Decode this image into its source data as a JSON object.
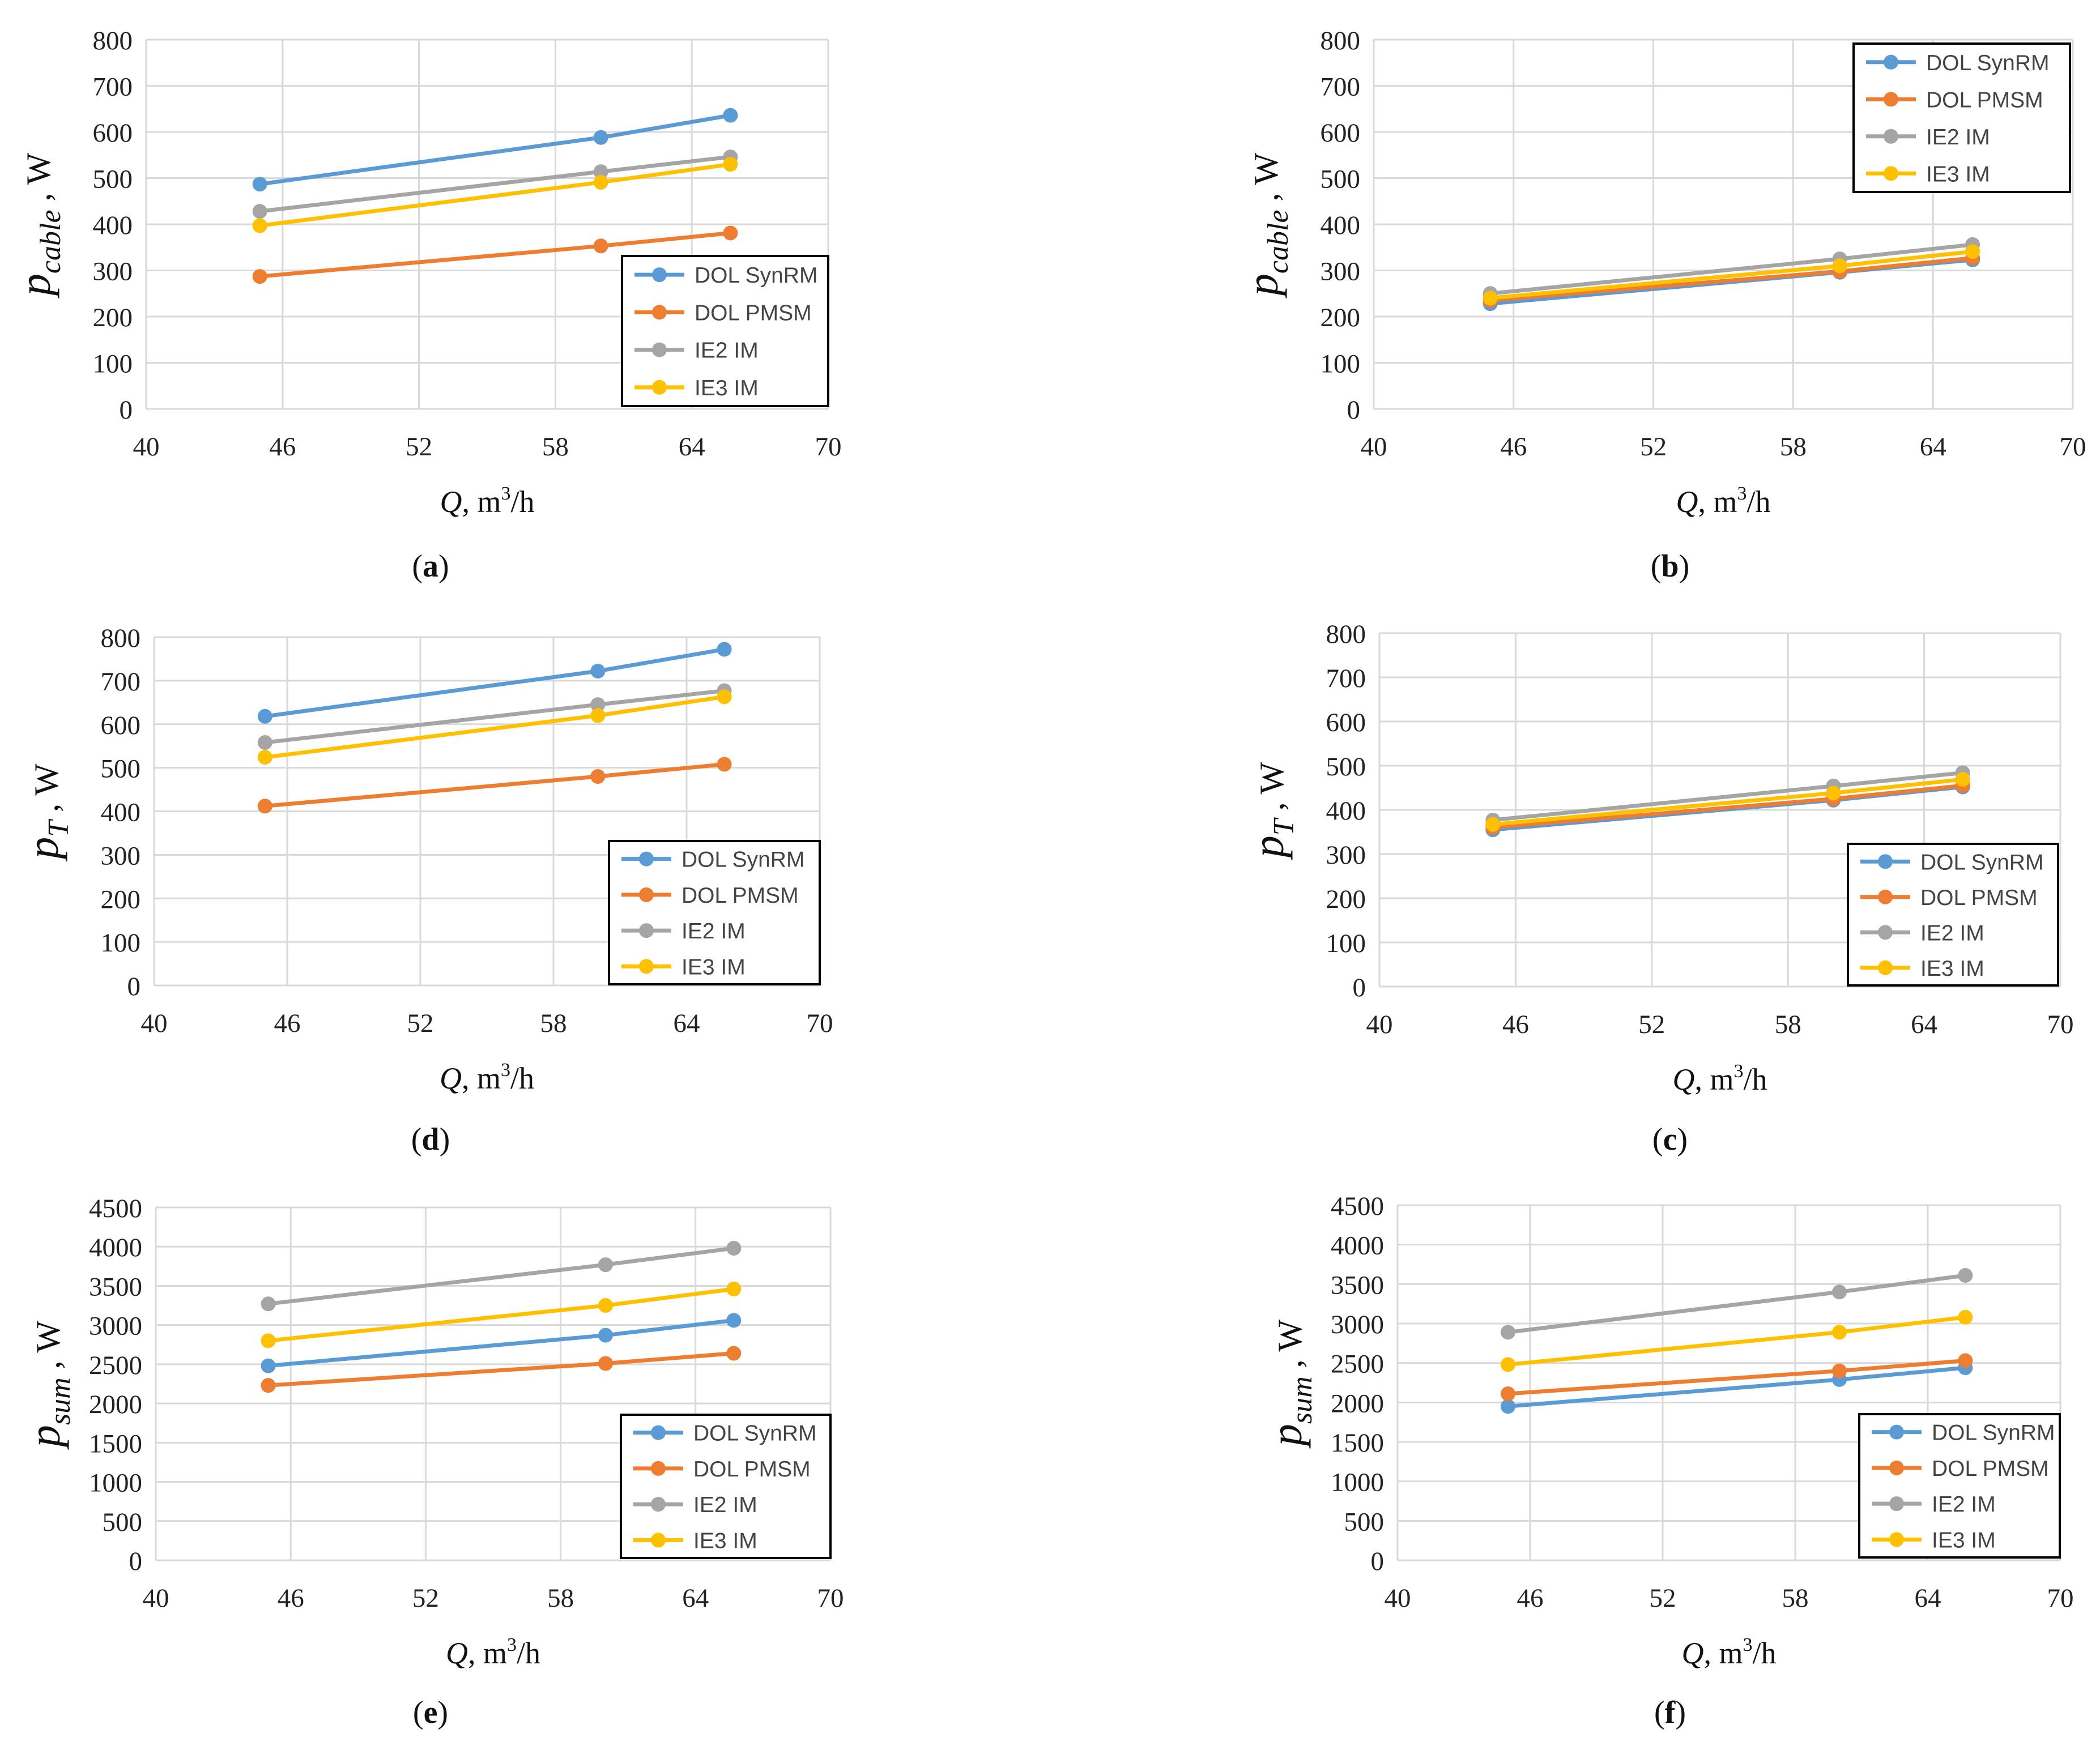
{
  "series_colors": {
    "DOL SynRM": "#5B9BD5",
    "DOL PMSM": "#ED7D31",
    "IE2 IM": "#A5A5A5",
    "IE3 IM": "#FFC000"
  },
  "chart_data": [
    {
      "id": "a",
      "type": "line",
      "panel_label": "a",
      "ylabel": {
        "main": "p",
        "sub": "cable",
        "unit": ", W"
      },
      "xlabel": {
        "main": "Q",
        "unit": ", m",
        "sup": "3",
        "tail": "/h"
      },
      "xlim": [
        40,
        70
      ],
      "xticks": [
        40,
        46,
        52,
        58,
        64,
        70
      ],
      "ylim": [
        0,
        800
      ],
      "yticks": [
        0,
        100,
        200,
        300,
        400,
        500,
        600,
        700,
        800
      ],
      "legend": "bottom-right",
      "series": [
        {
          "name": "DOL SynRM",
          "x": [
            45,
            60,
            65.7
          ],
          "y": [
            487,
            588,
            636
          ]
        },
        {
          "name": "DOL PMSM",
          "x": [
            45,
            60,
            65.7
          ],
          "y": [
            287,
            353,
            381
          ]
        },
        {
          "name": "IE2 IM",
          "x": [
            45,
            60,
            65.7
          ],
          "y": [
            428,
            514,
            546
          ]
        },
        {
          "name": "IE3 IM",
          "x": [
            45,
            60,
            65.7
          ],
          "y": [
            397,
            491,
            530
          ]
        }
      ]
    },
    {
      "id": "b",
      "type": "line",
      "panel_label": "b",
      "ylabel": {
        "main": "p",
        "sub": "cable",
        "unit": ", W"
      },
      "xlabel": {
        "main": "Q",
        "unit": ", m",
        "sup": "3",
        "tail": "/h"
      },
      "xlim": [
        40,
        70
      ],
      "xticks": [
        40,
        46,
        52,
        58,
        64,
        70
      ],
      "ylim": [
        0,
        800
      ],
      "yticks": [
        0,
        100,
        200,
        300,
        400,
        500,
        600,
        700,
        800
      ],
      "legend": "top-right",
      "series": [
        {
          "name": "DOL SynRM",
          "x": [
            45,
            60,
            65.7
          ],
          "y": [
            228,
            296,
            323
          ]
        },
        {
          "name": "DOL PMSM",
          "x": [
            45,
            60,
            65.7
          ],
          "y": [
            235,
            298,
            327
          ]
        },
        {
          "name": "IE2 IM",
          "x": [
            45,
            60,
            65.7
          ],
          "y": [
            250,
            325,
            356
          ]
        },
        {
          "name": "IE3 IM",
          "x": [
            45,
            60,
            65.7
          ],
          "y": [
            240,
            310,
            341
          ]
        }
      ]
    },
    {
      "id": "d",
      "type": "line",
      "panel_label": "d",
      "ylabel": {
        "main": "p",
        "sub": "T",
        "unit": ", W"
      },
      "xlabel": {
        "main": "Q",
        "unit": ", m",
        "sup": "3",
        "tail": "/h"
      },
      "xlim": [
        40,
        70
      ],
      "xticks": [
        40,
        46,
        52,
        58,
        64,
        70
      ],
      "ylim": [
        0,
        800
      ],
      "yticks": [
        0,
        100,
        200,
        300,
        400,
        500,
        600,
        700,
        800
      ],
      "legend": "bottom-right",
      "series": [
        {
          "name": "DOL SynRM",
          "x": [
            45,
            60,
            65.7
          ],
          "y": [
            618,
            722,
            772
          ]
        },
        {
          "name": "DOL PMSM",
          "x": [
            45,
            60,
            65.7
          ],
          "y": [
            412,
            480,
            508
          ]
        },
        {
          "name": "IE2 IM",
          "x": [
            45,
            60,
            65.7
          ],
          "y": [
            558,
            645,
            677
          ]
        },
        {
          "name": "IE3 IM",
          "x": [
            45,
            60,
            65.7
          ],
          "y": [
            524,
            620,
            663
          ]
        }
      ]
    },
    {
      "id": "c",
      "type": "line",
      "panel_label": "c",
      "ylabel": {
        "main": "p",
        "sub": "T",
        "unit": ", W"
      },
      "xlabel": {
        "main": "Q",
        "unit": ", m",
        "sup": "3",
        "tail": "/h"
      },
      "xlim": [
        40,
        70
      ],
      "xticks": [
        40,
        46,
        52,
        58,
        64,
        70
      ],
      "ylim": [
        0,
        800
      ],
      "yticks": [
        0,
        100,
        200,
        300,
        400,
        500,
        600,
        700,
        800
      ],
      "legend": "bottom-right",
      "series": [
        {
          "name": "DOL SynRM",
          "x": [
            45,
            60,
            65.7
          ],
          "y": [
            355,
            422,
            452
          ]
        },
        {
          "name": "DOL PMSM",
          "x": [
            45,
            60,
            65.7
          ],
          "y": [
            360,
            425,
            455
          ]
        },
        {
          "name": "IE2 IM",
          "x": [
            45,
            60,
            65.7
          ],
          "y": [
            377,
            454,
            484
          ]
        },
        {
          "name": "IE3 IM",
          "x": [
            45,
            60,
            65.7
          ],
          "y": [
            367,
            438,
            469
          ]
        }
      ]
    },
    {
      "id": "e",
      "type": "line",
      "panel_label": "e",
      "ylabel": {
        "main": "p",
        "sub": "sum",
        "unit": ", W"
      },
      "xlabel": {
        "main": "Q",
        "unit": ", m",
        "sup": "3",
        "tail": "/h"
      },
      "xlim": [
        40,
        70
      ],
      "xticks": [
        40,
        46,
        52,
        58,
        64,
        70
      ],
      "ylim": [
        0,
        4500
      ],
      "yticks": [
        0,
        500,
        1000,
        1500,
        2000,
        2500,
        3000,
        3500,
        4000,
        4500
      ],
      "legend": "bottom-right",
      "series": [
        {
          "name": "DOL SynRM",
          "x": [
            45,
            60,
            65.7
          ],
          "y": [
            2480,
            2870,
            3060
          ]
        },
        {
          "name": "DOL PMSM",
          "x": [
            45,
            60,
            65.7
          ],
          "y": [
            2230,
            2510,
            2640
          ]
        },
        {
          "name": "IE2 IM",
          "x": [
            45,
            60,
            65.7
          ],
          "y": [
            3270,
            3770,
            3980
          ]
        },
        {
          "name": "IE3 IM",
          "x": [
            45,
            60,
            65.7
          ],
          "y": [
            2800,
            3250,
            3460
          ]
        }
      ]
    },
    {
      "id": "f",
      "type": "line",
      "panel_label": "f",
      "ylabel": {
        "main": "p",
        "sub": "sum",
        "unit": ", W"
      },
      "xlabel": {
        "main": "Q",
        "unit": ", m",
        "sup": "3",
        "tail": "/h"
      },
      "xlim": [
        40,
        70
      ],
      "xticks": [
        40,
        46,
        52,
        58,
        64,
        70
      ],
      "ylim": [
        0,
        4500
      ],
      "yticks": [
        0,
        500,
        1000,
        1500,
        2000,
        2500,
        3000,
        3500,
        4000,
        4500
      ],
      "legend": "bottom-right",
      "series": [
        {
          "name": "DOL SynRM",
          "x": [
            45,
            60,
            65.7
          ],
          "y": [
            1950,
            2290,
            2440
          ]
        },
        {
          "name": "DOL PMSM",
          "x": [
            45,
            60,
            65.7
          ],
          "y": [
            2110,
            2400,
            2530
          ]
        },
        {
          "name": "IE2 IM",
          "x": [
            45,
            60,
            65.7
          ],
          "y": [
            2890,
            3400,
            3610
          ]
        },
        {
          "name": "IE3 IM",
          "x": [
            45,
            60,
            65.7
          ],
          "y": [
            2480,
            2890,
            3080
          ]
        }
      ]
    }
  ]
}
